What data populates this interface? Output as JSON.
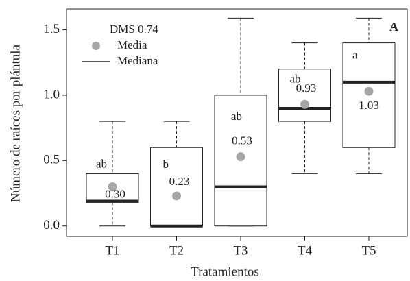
{
  "chart_data": {
    "type": "box",
    "categories": [
      "T1",
      "T2",
      "T3",
      "T4",
      "T5"
    ],
    "whisker_low": [
      0,
      0,
      0,
      0.4,
      0.4
    ],
    "q1": [
      0.18,
      0,
      0,
      0.8,
      0.6
    ],
    "median": [
      0.19,
      0,
      0.3,
      0.9,
      1.1
    ],
    "q3": [
      0.4,
      0.6,
      1.0,
      1.2,
      1.4
    ],
    "whisker_high": [
      0.8,
      0.8,
      1.59,
      1.4,
      1.59
    ],
    "mean": [
      0.3,
      0.23,
      0.53,
      0.93,
      1.03
    ],
    "mean_labels": [
      "0.30",
      "0.23",
      "0.53",
      "0.93",
      "1.03"
    ],
    "letters": [
      "ab",
      "b",
      "ab",
      "ab",
      "a"
    ],
    "mean_color": "#a6a6a6",
    "ylim": [
      -0.08,
      1.66
    ],
    "yticks": [
      {
        "value": 0,
        "label": "0.0"
      },
      0.5,
      {
        "value": 1,
        "label": "1.0"
      },
      1.5
    ],
    "xlabel": "Tratamientos",
    "ylabel": "Número de raíces por plántula",
    "panel_label": "A",
    "legend": {
      "title": "DMS 0.74",
      "mean": "Media",
      "median": "Mediana"
    }
  }
}
